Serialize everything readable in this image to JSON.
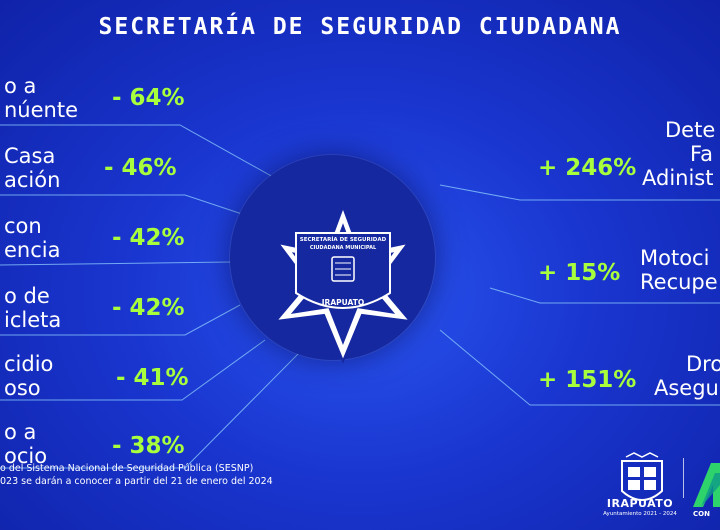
{
  "title": "SECRETARÍA DE SEGURIDAD CIUDADANA",
  "left_items": [
    {
      "label_line1": "o a",
      "label_line2": "núente",
      "value": "- 64%"
    },
    {
      "label_line1": "Casa",
      "label_line2": "ación",
      "value": "-  46%"
    },
    {
      "label_line1": "con",
      "label_line2": "encia",
      "value": "- 42%"
    },
    {
      "label_line1": "o de",
      "label_line2": "icleta",
      "value": "- 42%"
    },
    {
      "label_line1": "cidio",
      "label_line2": "oso",
      "value": "- 41%"
    },
    {
      "label_line1": "o a",
      "label_line2": "ocio",
      "value": "- 38%"
    }
  ],
  "right_items": [
    {
      "label_line1": "Dete",
      "label_line2": "Fa",
      "label_line3": "Adinist",
      "value": "+ 246%"
    },
    {
      "label_line1": "Motoci",
      "label_line2": "Recupe",
      "value": "+ 15%"
    },
    {
      "label_line1": "Dro",
      "label_line2": "Asegu",
      "value": "+ 151%"
    }
  ],
  "badge": {
    "line1": "SECRETARÍA DE SEGURIDAD",
    "line2": "CIUDADANA MUNICIPAL",
    "city": "IRAPUATO"
  },
  "footnote": {
    "line1": "o del Sistema Nacional de Seguridad Pública (SESNP)",
    "line2": "023 se darán a conocer a partir del 21 de enero del 2024"
  },
  "logo": {
    "name": "IRAPUATO",
    "sub": "Ayuntamiento 2021 - 2024",
    "right_text": "CON"
  },
  "colors": {
    "accent_green": "#a8ff3c",
    "background": "#1a36d0"
  }
}
